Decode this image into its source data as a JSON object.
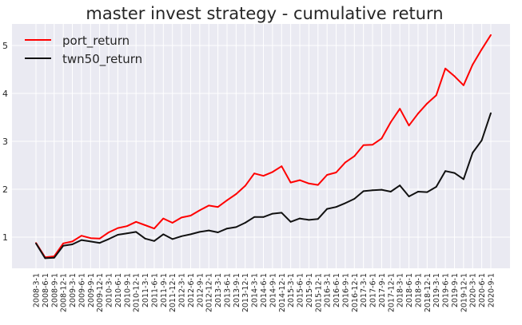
{
  "chart_data": {
    "type": "line",
    "title": "master invest strategy - cumulative return",
    "xlabel": "",
    "ylabel": "",
    "ylim": [
      0.35,
      5.45
    ],
    "yticks": [
      1,
      2,
      3,
      4,
      5
    ],
    "grid": true,
    "legend_position": "top-left",
    "x": [
      "2008-3-1",
      "2008-6-1",
      "2008-9-1",
      "2008-12-1",
      "2009-3-1",
      "2009-6-1",
      "2009-9-1",
      "2009-12-1",
      "2010-3-1",
      "2010-6-1",
      "2010-9-1",
      "2010-12-1",
      "2011-3-1",
      "2011-6-1",
      "2011-9-1",
      "2011-12-1",
      "2012-3-1",
      "2012-6-1",
      "2012-9-1",
      "2012-12-1",
      "2013-3-1",
      "2013-6-1",
      "2013-9-1",
      "2013-12-1",
      "2014-3-1",
      "2014-6-1",
      "2014-9-1",
      "2014-12-1",
      "2015-3-1",
      "2015-6-1",
      "2015-9-1",
      "2015-12-1",
      "2016-3-1",
      "2016-6-1",
      "2016-9-1",
      "2016-12-1",
      "2017-3-1",
      "2017-6-1",
      "2017-9-1",
      "2017-12-1",
      "2018-3-1",
      "2018-6-1",
      "2018-9-1",
      "2018-12-1",
      "2019-3-1",
      "2019-6-1",
      "2019-9-1",
      "2019-12-1",
      "2020-3-1",
      "2020-6-1",
      "2020-9-1"
    ],
    "series": [
      {
        "name": "port_return",
        "color": "#ff0000",
        "values": [
          0.88,
          0.58,
          0.6,
          0.87,
          0.91,
          1.03,
          0.98,
          0.97,
          1.1,
          1.19,
          1.23,
          1.32,
          1.25,
          1.18,
          1.39,
          1.3,
          1.41,
          1.45,
          1.56,
          1.66,
          1.63,
          1.77,
          1.9,
          2.07,
          2.33,
          2.28,
          2.36,
          2.48,
          2.14,
          2.19,
          2.12,
          2.09,
          2.3,
          2.35,
          2.56,
          2.69,
          2.92,
          2.93,
          3.06,
          3.4,
          3.68,
          3.33,
          3.58,
          3.79,
          3.96,
          4.52,
          4.36,
          4.17,
          4.6,
          4.92,
          5.22
        ]
      },
      {
        "name": "twn50_return",
        "color": "#111111",
        "values": [
          0.87,
          0.56,
          0.57,
          0.82,
          0.85,
          0.94,
          0.91,
          0.88,
          0.96,
          1.05,
          1.08,
          1.11,
          0.97,
          0.92,
          1.06,
          0.96,
          1.02,
          1.06,
          1.11,
          1.14,
          1.1,
          1.18,
          1.21,
          1.3,
          1.42,
          1.42,
          1.49,
          1.51,
          1.32,
          1.39,
          1.36,
          1.38,
          1.59,
          1.63,
          1.71,
          1.8,
          1.96,
          1.98,
          1.99,
          1.95,
          2.08,
          1.85,
          1.95,
          1.94,
          2.05,
          2.38,
          2.34,
          2.21,
          2.76,
          3.02,
          3.59
        ]
      }
    ]
  }
}
